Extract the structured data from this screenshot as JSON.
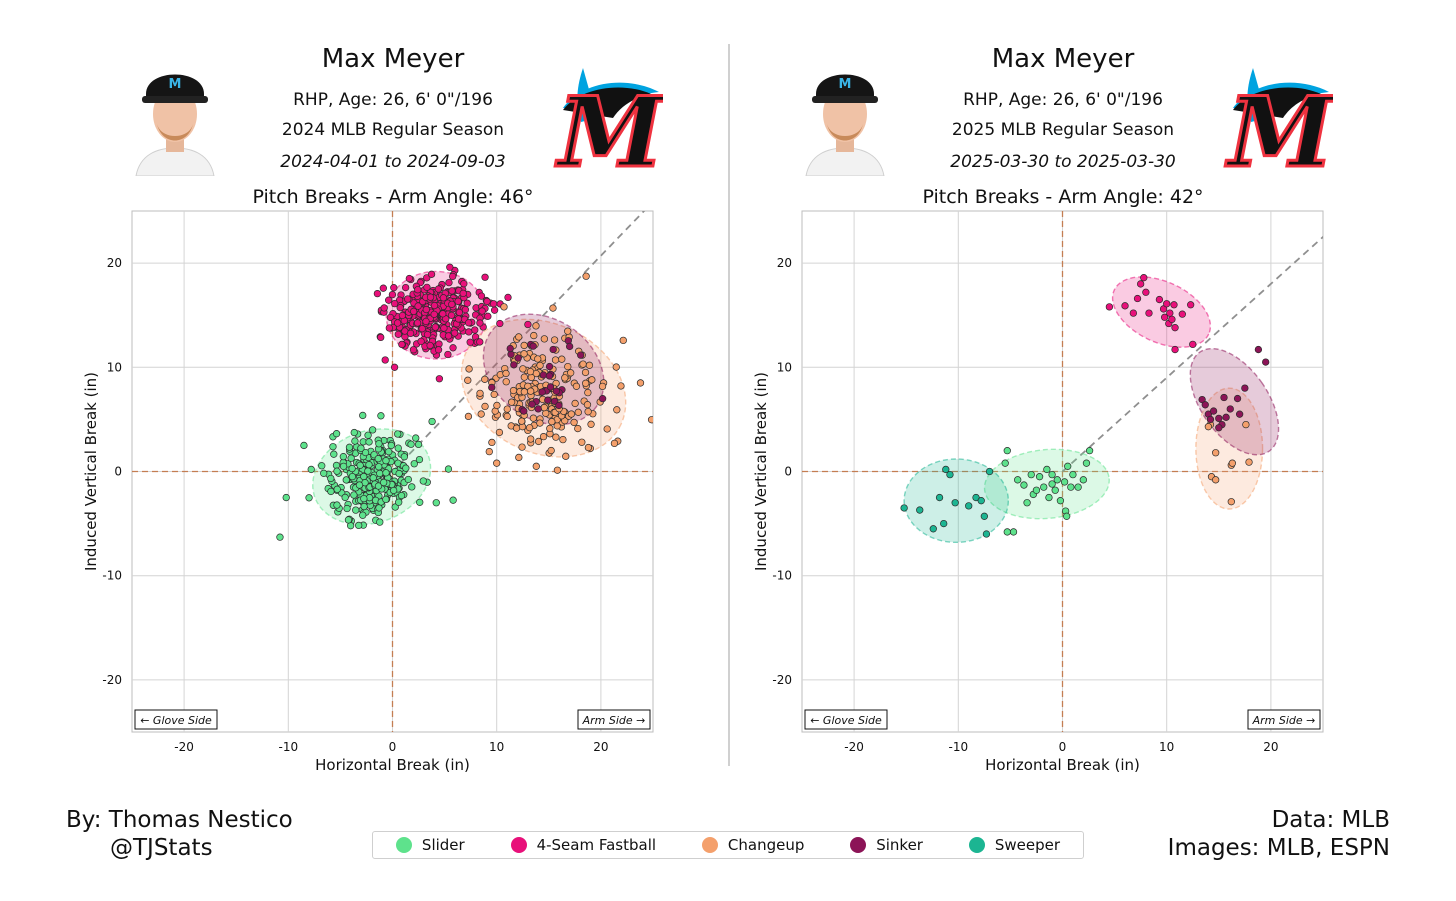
{
  "panels": [
    {
      "player_name": "Max Meyer",
      "bio": "RHP, Age: 26, 6' 0\"/196",
      "season": "2024 MLB Regular Season",
      "dates": "2024-04-01 to 2024-09-03",
      "chart_title": "Pitch Breaks - Arm Angle: 46°"
    },
    {
      "player_name": "Max Meyer",
      "bio": "RHP, Age: 26, 6' 0\"/196",
      "season": "2025 MLB Regular Season",
      "dates": "2025-03-30 to 2025-03-30",
      "chart_title": "Pitch Breaks - Arm Angle: 42°"
    }
  ],
  "footer": {
    "author": "By: Thomas Nestico",
    "handle": "@TJStats",
    "data_source": "Data: MLB",
    "images_source": "Images: MLB, ESPN"
  },
  "legend": [
    {
      "label": "Slider",
      "color": "#5ee28c"
    },
    {
      "label": "4-Seam Fastball",
      "color": "#e8107a"
    },
    {
      "label": "Changeup",
      "color": "#f4a06c"
    },
    {
      "label": "Sinker",
      "color": "#8c1457"
    },
    {
      "label": "Sweeper",
      "color": "#1cb592"
    }
  ],
  "chart_data": [
    {
      "type": "scatter",
      "title": "Pitch Breaks - Arm Angle: 46°",
      "xlabel": "Horizontal Break (in)",
      "ylabel": "Induced Vertical Break (in)",
      "xlim": [
        -25,
        25
      ],
      "ylim": [
        -25,
        25
      ],
      "xticks": [
        -20,
        -10,
        0,
        10,
        20
      ],
      "yticks": [
        -20,
        -10,
        0,
        10,
        20
      ],
      "grid": true,
      "annotations": {
        "left": "← Glove Side",
        "right": "Arm Side →"
      },
      "arm_angle_deg": 46,
      "series": [
        {
          "name": "Slider",
          "color": "#5ee28c",
          "center": [
            -2.0,
            -0.5
          ],
          "spread": [
            2.2,
            2.0
          ],
          "count": 300,
          "extra_points": [
            [
              -10.8,
              -6.3
            ],
            [
              -10.2,
              -2.5
            ],
            [
              -8.5,
              2.5
            ],
            [
              4.2,
              -3.0
            ],
            [
              3.8,
              4.8
            ],
            [
              0.5,
              3.6
            ],
            [
              -7.8,
              0.2
            ],
            [
              2.5,
              2.6
            ]
          ],
          "ellipse": {
            "center": [
              -2.0,
              -0.5
            ],
            "rx": 5.8,
            "ry": 4.4,
            "angle": 20
          }
        },
        {
          "name": "4-Seam Fastball",
          "color": "#e8107a",
          "center": [
            4.0,
            15.0
          ],
          "spread": [
            2.3,
            1.7
          ],
          "count": 330,
          "extra_points": [
            [
              -0.8,
              15.7
            ],
            [
              -0.7,
              10.7
            ],
            [
              0.2,
              10.0
            ],
            [
              4.5,
              8.9
            ],
            [
              9.7,
              16.1
            ],
            [
              10.3,
              14.2
            ],
            [
              5.5,
              19.6
            ]
          ],
          "ellipse": {
            "center": [
              4.2,
              15.0
            ],
            "rx": 4.8,
            "ry": 4.2,
            "angle": 0
          }
        },
        {
          "name": "Changeup",
          "color": "#f4a06c",
          "center": [
            14.5,
            7.5
          ],
          "spread": [
            3.2,
            2.8
          ],
          "count": 210,
          "extra_points": [
            [
              23.8,
              8.5
            ],
            [
              21.3,
              2.7
            ],
            [
              10.0,
              0.8
            ],
            [
              8.4,
              7.5
            ],
            [
              10.7,
              15.8
            ],
            [
              13.8,
              0.5
            ],
            [
              18.8,
              2.3
            ]
          ],
          "ellipse": {
            "center": [
              14.5,
              8.0
            ],
            "rx": 8.2,
            "ry": 6.2,
            "angle": -25
          }
        },
        {
          "name": "Sinker",
          "color": "#8c1457",
          "center": [
            15.0,
            8.5
          ],
          "spread": [
            2.2,
            2.2
          ],
          "count": 28,
          "extra_points": [
            [
              17.0,
              12.0
            ],
            [
              11.3,
              11.8
            ],
            [
              12.6,
              5.8
            ]
          ],
          "ellipse": {
            "center": [
              14.5,
              9.8
            ],
            "rx": 6.2,
            "ry": 4.8,
            "angle": -35
          }
        }
      ]
    },
    {
      "type": "scatter",
      "title": "Pitch Breaks - Arm Angle: 42°",
      "xlabel": "Horizontal Break (in)",
      "ylabel": "Induced Vertical Break (in)",
      "xlim": [
        -25,
        25
      ],
      "ylim": [
        -25,
        25
      ],
      "xticks": [
        -20,
        -10,
        0,
        10,
        20
      ],
      "yticks": [
        -20,
        -10,
        0,
        10,
        20
      ],
      "grid": true,
      "annotations": {
        "left": "← Glove Side",
        "right": "Arm Side →"
      },
      "arm_angle_deg": 42,
      "series": [
        {
          "name": "Slider",
          "color": "#5ee28c",
          "points": [
            [
              -5.3,
              2.0
            ],
            [
              -5.5,
              0.8
            ],
            [
              -4.3,
              -0.8
            ],
            [
              -3.7,
              -1.3
            ],
            [
              -2.8,
              -2.2
            ],
            [
              -2.2,
              -0.5
            ],
            [
              -1.8,
              -1.5
            ],
            [
              -1.5,
              0.2
            ],
            [
              -1.3,
              -2.5
            ],
            [
              -1.0,
              -0.3
            ],
            [
              -0.7,
              -1.8
            ],
            [
              -0.5,
              -0.8
            ],
            [
              -0.2,
              -2.8
            ],
            [
              0.2,
              -1.0
            ],
            [
              0.5,
              0.5
            ],
            [
              0.8,
              -1.5
            ],
            [
              1.0,
              -0.3
            ],
            [
              1.5,
              -1.5
            ],
            [
              2.0,
              -0.8
            ],
            [
              2.3,
              0.8
            ],
            [
              2.6,
              2.0
            ],
            [
              0.3,
              -3.8
            ],
            [
              0.4,
              -4.3
            ],
            [
              -3.4,
              -3.0
            ],
            [
              -4.7,
              -5.8
            ],
            [
              -5.3,
              -5.8
            ],
            [
              -2.5,
              -1.8
            ],
            [
              -1.0,
              -1.2
            ],
            [
              -3.0,
              -0.3
            ]
          ],
          "ellipse": {
            "center": [
              -1.5,
              -1.2
            ],
            "rx": 6.0,
            "ry": 3.3,
            "angle": 5
          }
        },
        {
          "name": "4-Seam Fastball",
          "color": "#e8107a",
          "points": [
            [
              4.5,
              15.8
            ],
            [
              6.0,
              15.9
            ],
            [
              7.2,
              16.6
            ],
            [
              7.8,
              18.6
            ],
            [
              7.5,
              18.0
            ],
            [
              8.3,
              15.2
            ],
            [
              9.3,
              16.5
            ],
            [
              9.7,
              15.6
            ],
            [
              10.0,
              16.1
            ],
            [
              9.8,
              14.8
            ],
            [
              10.3,
              15.2
            ],
            [
              10.7,
              16.0
            ],
            [
              10.2,
              14.2
            ],
            [
              10.8,
              13.8
            ],
            [
              10.5,
              14.6
            ],
            [
              12.3,
              16.0
            ],
            [
              11.5,
              15.1
            ],
            [
              12.5,
              12.2
            ],
            [
              10.8,
              11.7
            ],
            [
              6.8,
              15.2
            ],
            [
              8.0,
              17.2
            ]
          ],
          "ellipse": {
            "center": [
              9.5,
              15.3
            ],
            "rx": 5.0,
            "ry": 2.9,
            "angle": -25
          }
        },
        {
          "name": "Changeup",
          "color": "#f4a06c",
          "points": [
            [
              14.2,
              4.5
            ],
            [
              14.0,
              4.3
            ],
            [
              14.7,
              1.8
            ],
            [
              14.3,
              -0.5
            ],
            [
              14.7,
              -0.8
            ],
            [
              16.2,
              0.6
            ],
            [
              16.3,
              0.8
            ],
            [
              17.9,
              0.9
            ],
            [
              16.2,
              -2.9
            ],
            [
              17.6,
              4.5
            ]
          ],
          "ellipse": {
            "center": [
              16.0,
              2.2
            ],
            "rx": 3.2,
            "ry": 5.8,
            "angle": 0
          }
        },
        {
          "name": "Sinker",
          "color": "#8c1457",
          "points": [
            [
              13.4,
              6.9
            ],
            [
              13.7,
              6.4
            ],
            [
              14.0,
              5.5
            ],
            [
              14.5,
              5.8
            ],
            [
              14.2,
              5.0
            ],
            [
              15.0,
              5.1
            ],
            [
              15.3,
              4.5
            ],
            [
              15.0,
              4.2
            ],
            [
              15.7,
              5.2
            ],
            [
              15.5,
              7.1
            ],
            [
              16.1,
              6.0
            ],
            [
              17.0,
              5.5
            ],
            [
              17.5,
              8.0
            ],
            [
              18.8,
              11.7
            ],
            [
              19.5,
              10.5
            ],
            [
              16.8,
              7.0
            ]
          ],
          "ellipse": {
            "center": [
              16.5,
              6.7
            ],
            "rx": 3.2,
            "ry": 5.8,
            "angle": 35
          }
        },
        {
          "name": "Sweeper",
          "color": "#1cb592",
          "points": [
            [
              -15.2,
              -3.5
            ],
            [
              -13.7,
              -3.7
            ],
            [
              -12.4,
              -5.5
            ],
            [
              -11.8,
              -2.5
            ],
            [
              -11.4,
              -5.0
            ],
            [
              -10.8,
              -0.3
            ],
            [
              -10.3,
              -3.0
            ],
            [
              -9.0,
              -3.3
            ],
            [
              -8.3,
              -2.5
            ],
            [
              -7.8,
              -2.8
            ],
            [
              -7.5,
              -4.3
            ],
            [
              -7.3,
              -6.0
            ],
            [
              -7.0,
              0.0
            ],
            [
              -11.2,
              0.2
            ]
          ],
          "ellipse": {
            "center": [
              -10.2,
              -2.8
            ],
            "rx": 5.0,
            "ry": 4.0,
            "angle": 0
          }
        }
      ]
    }
  ]
}
